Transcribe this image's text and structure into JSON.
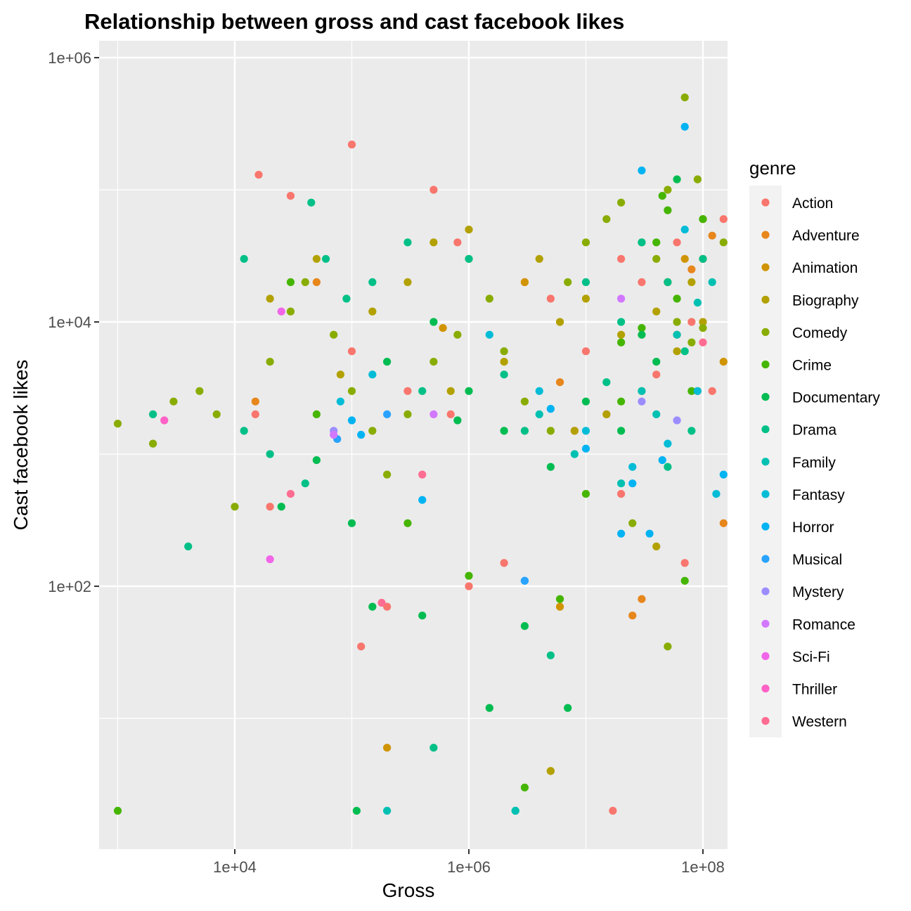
{
  "chart_data": {
    "type": "scatter",
    "title": "Relationship between gross and cast facebook likes",
    "xlabel": "Gross",
    "ylabel": "Cast facebook likes",
    "x_scale": "log10",
    "y_scale": "log10",
    "xlim": [
      500,
      1000000000
    ],
    "ylim": [
      1.5,
      1000000
    ],
    "x_ticks": [
      10000,
      1000000,
      100000000
    ],
    "x_tick_labels": [
      "1e+04",
      "1e+06",
      "1e+08"
    ],
    "y_ticks": [
      100,
      10000,
      1000000
    ],
    "y_tick_labels": [
      "1e+02",
      "1e+04",
      "1e+06"
    ],
    "grid": true,
    "legend": {
      "title": "genre",
      "placement": "right",
      "entries": [
        {
          "name": "Action",
          "color": "#F8766D"
        },
        {
          "name": "Adventure",
          "color": "#E58700"
        },
        {
          "name": "Animation",
          "color": "#C99800"
        },
        {
          "name": "Biography",
          "color": "#A3A500"
        },
        {
          "name": "Comedy",
          "color": "#6BB100"
        },
        {
          "name": "Crime",
          "color": "#00BA38"
        },
        {
          "name": "Documentary",
          "color": "#00BF7D"
        },
        {
          "name": "Drama",
          "color": "#00C0AF"
        },
        {
          "name": "Family",
          "color": "#00BCD8"
        },
        {
          "name": "Fantasy",
          "color": "#00B0F6"
        },
        {
          "name": "Horror",
          "color": "#619CFF"
        },
        {
          "name": "Musical",
          "color": "#B983FF"
        },
        {
          "name": "Mystery",
          "color": "#E76BF3"
        },
        {
          "name": "Romance",
          "color": "#FD61D1"
        },
        {
          "name": "Sci-Fi",
          "color": "#FF67A4"
        },
        {
          "name": "Thriller",
          "color": "#F8766D"
        },
        {
          "name": "Western",
          "color": "#F8766D"
        }
      ]
    },
    "legend_colors": {
      "Action": "#F8766D",
      "Adventure": "#E7861B",
      "Animation": "#D09400",
      "Biography": "#B2A100",
      "Comedy": "#89AC00",
      "Crime": "#45B500",
      "Documentary": "#00BC51",
      "Drama": "#00C087",
      "Family": "#00C0B2",
      "Fantasy": "#00BCD6",
      "Horror": "#00B3F2",
      "Musical": "#29A3FF",
      "Mystery": "#9C8DFF",
      "Romance": "#D277FF",
      "Sci-Fi": "#F166E8",
      "Thriller": "#FF61C7",
      "Western": "#FF6C91"
    },
    "series": [
      {
        "name": "Action",
        "points": [
          [
            100000,
            220000
          ],
          [
            16000,
            130000
          ],
          [
            30000,
            90000
          ],
          [
            500000,
            100000
          ],
          [
            800000,
            40000
          ],
          [
            700000,
            2000
          ],
          [
            300000,
            3000
          ],
          [
            100000,
            6000
          ],
          [
            3000000,
            20000
          ],
          [
            5000000,
            15000
          ],
          [
            10000000,
            6000
          ],
          [
            20000000,
            30000
          ],
          [
            50000000,
            20000
          ],
          [
            100000000,
            30000
          ],
          [
            200000000,
            25000
          ],
          [
            300000000,
            50000
          ],
          [
            400000000,
            20000
          ],
          [
            600000000,
            10000
          ],
          [
            700000000,
            8000
          ],
          [
            900000000,
            5000
          ],
          [
            30000000,
            20000
          ],
          [
            60000000,
            40000
          ],
          [
            80000000,
            10000
          ],
          [
            150000000,
            60000
          ],
          [
            250000000,
            80000
          ],
          [
            40000000,
            4000
          ],
          [
            15000000,
            2000
          ],
          [
            8000000,
            1500
          ],
          [
            20000000,
            500
          ],
          [
            70000000,
            150
          ],
          [
            120000000,
            3000
          ],
          [
            2000000,
            150
          ],
          [
            1000000,
            100
          ],
          [
            200000,
            70
          ],
          [
            120000,
            35
          ],
          [
            17000000,
            2
          ],
          [
            20000,
            400
          ],
          [
            15000,
            2000
          ],
          [
            400000000,
            15000
          ],
          [
            200000000,
            8000
          ]
        ]
      },
      {
        "name": "Adventure",
        "points": [
          [
            50000,
            20000
          ],
          [
            15000,
            2500
          ],
          [
            300000000,
            50000
          ],
          [
            200000000,
            40000
          ],
          [
            400000000,
            1200
          ],
          [
            150000000,
            300
          ],
          [
            25000000,
            60
          ],
          [
            30000000,
            80
          ],
          [
            6000000,
            3500
          ],
          [
            100000000,
            30000
          ],
          [
            250000000,
            70000
          ],
          [
            350000000,
            30000
          ],
          [
            180000000,
            15000
          ],
          [
            60000000,
            8000
          ],
          [
            80000000,
            25000
          ],
          [
            120000000,
            45000
          ],
          [
            90000000,
            3000
          ],
          [
            500000000,
            15000
          ],
          [
            450000000,
            8000
          ],
          [
            300000000,
            2500
          ]
        ]
      },
      {
        "name": "Animation",
        "points": [
          [
            200000,
            6
          ],
          [
            5000000,
            4
          ],
          [
            400000000,
            400
          ],
          [
            230000000,
            250
          ],
          [
            150000000,
            5000
          ],
          [
            100000000,
            60000
          ],
          [
            70000000,
            30000
          ],
          [
            50000000,
            20000
          ],
          [
            200000000,
            40000
          ],
          [
            300000000,
            70000
          ],
          [
            6000000,
            70
          ],
          [
            600000,
            9000
          ],
          [
            3000000,
            20000
          ]
        ]
      },
      {
        "name": "Biography",
        "points": [
          [
            1000000,
            50000
          ],
          [
            500000,
            40000
          ],
          [
            300000,
            20000
          ],
          [
            4000000,
            30000
          ],
          [
            6000000,
            10000
          ],
          [
            10000000,
            15000
          ],
          [
            20000000,
            8000
          ],
          [
            40000000,
            12000
          ],
          [
            60000000,
            6000
          ],
          [
            30000000,
            3000
          ],
          [
            15000000,
            2000
          ],
          [
            8000000,
            1500
          ],
          [
            80000000,
            20000
          ],
          [
            100000000,
            10000
          ],
          [
            2000000,
            5000
          ],
          [
            700000,
            3000
          ],
          [
            5000000,
            4
          ],
          [
            150000,
            12000
          ],
          [
            80000,
            4000
          ],
          [
            50000,
            30000
          ],
          [
            20000,
            15000
          ],
          [
            40000000,
            200
          ]
        ]
      },
      {
        "name": "Comedy",
        "points": [
          [
            600,
            800
          ],
          [
            1000,
            1700
          ],
          [
            2000,
            1200
          ],
          [
            3000,
            2500
          ],
          [
            5000,
            3000
          ],
          [
            7000,
            2000
          ],
          [
            10000,
            400
          ],
          [
            20000,
            5000
          ],
          [
            30000,
            12000
          ],
          [
            40000,
            20000
          ],
          [
            70000,
            8000
          ],
          [
            100000,
            3000
          ],
          [
            150000,
            1500
          ],
          [
            200000,
            700
          ],
          [
            300000,
            2000
          ],
          [
            500000,
            5000
          ],
          [
            800000,
            8000
          ],
          [
            1000000,
            30000
          ],
          [
            1500000,
            15000
          ],
          [
            2000000,
            6000
          ],
          [
            3000000,
            2500
          ],
          [
            5000000,
            1500
          ],
          [
            7000000,
            20000
          ],
          [
            10000000,
            40000
          ],
          [
            12000000,
            1
          ],
          [
            15000000,
            60000
          ],
          [
            20000000,
            80000
          ],
          [
            30000000,
            40000
          ],
          [
            40000000,
            30000
          ],
          [
            50000000,
            100000
          ],
          [
            70000000,
            500000
          ],
          [
            90000000,
            120000
          ],
          [
            100000000,
            60000
          ],
          [
            150000000,
            40000
          ],
          [
            200000000,
            20000
          ],
          [
            50000000,
            35
          ],
          [
            25000000,
            300
          ],
          [
            60000000,
            10000
          ],
          [
            80000000,
            7000
          ],
          [
            100000000,
            9000
          ]
        ]
      },
      {
        "name": "Crime",
        "points": [
          [
            1000,
            2
          ],
          [
            30000,
            20000
          ],
          [
            50000,
            2000
          ],
          [
            300000,
            300
          ],
          [
            1000000,
            120
          ],
          [
            3000000,
            3
          ],
          [
            6000000,
            80
          ],
          [
            10000000,
            500
          ],
          [
            20000000,
            2500
          ],
          [
            30000000,
            9000
          ],
          [
            40000000,
            40000
          ],
          [
            50000000,
            70000
          ],
          [
            70000000,
            110
          ],
          [
            100000000,
            60000
          ],
          [
            80000000,
            3000
          ],
          [
            60000000,
            15000
          ],
          [
            45000000,
            90000
          ],
          [
            20000000,
            7000
          ]
        ]
      },
      {
        "name": "Documentary",
        "points": [
          [
            110000,
            2
          ],
          [
            150000,
            70
          ],
          [
            400000,
            60
          ],
          [
            1500000,
            12
          ],
          [
            7000000,
            12
          ],
          [
            3000000,
            50
          ],
          [
            500000,
            10000
          ],
          [
            200000,
            5000
          ],
          [
            100000,
            300
          ],
          [
            50000,
            900
          ],
          [
            25000,
            400
          ],
          [
            1000000,
            3000
          ],
          [
            5000000,
            800
          ],
          [
            10000000,
            2500
          ],
          [
            20000000,
            1500
          ],
          [
            30000000,
            8000
          ],
          [
            40000000,
            5000
          ],
          [
            2000000,
            1500
          ],
          [
            800000,
            1800
          ],
          [
            60000000,
            120000
          ]
        ]
      },
      {
        "name": "Drama",
        "points": [
          [
            2000,
            2000
          ],
          [
            4000,
            200
          ],
          [
            12000,
            30000
          ],
          [
            20000,
            1000
          ],
          [
            45000,
            80000
          ],
          [
            60000,
            30000
          ],
          [
            90000,
            15000
          ],
          [
            150000,
            20000
          ],
          [
            300000,
            40000
          ],
          [
            500000,
            6
          ],
          [
            1000000,
            30000
          ],
          [
            2000000,
            4000
          ],
          [
            3000000,
            1500
          ],
          [
            5000000,
            30
          ],
          [
            10000000,
            20000
          ],
          [
            15000000,
            3500
          ],
          [
            20000000,
            10000
          ],
          [
            30000000,
            40000
          ],
          [
            50000000,
            20000
          ],
          [
            70000000,
            6000
          ],
          [
            100000000,
            30000
          ],
          [
            600000000,
            40000
          ],
          [
            2500000,
            2
          ],
          [
            400000,
            3000
          ],
          [
            40000,
            600
          ],
          [
            12000,
            1500
          ],
          [
            80000000,
            1500
          ],
          [
            50000000,
            800
          ]
        ]
      },
      {
        "name": "Family",
        "points": [
          [
            200000,
            2
          ],
          [
            2500000,
            2
          ],
          [
            4000000,
            2000
          ],
          [
            8000000,
            1000
          ],
          [
            30000000,
            3000
          ],
          [
            60000000,
            8000
          ],
          [
            90000000,
            14000
          ],
          [
            120000000,
            20000
          ],
          [
            40000000,
            2000
          ],
          [
            20000000,
            600
          ]
        ]
      },
      {
        "name": "Fantasy",
        "points": [
          [
            80000,
            2500
          ],
          [
            150000,
            4000
          ],
          [
            1500000,
            8000
          ],
          [
            4000000,
            3000
          ],
          [
            10000000,
            1500
          ],
          [
            25000000,
            800
          ],
          [
            50000000,
            1200
          ],
          [
            90000000,
            3000
          ],
          [
            130000000,
            500
          ],
          [
            200000000,
            12000
          ],
          [
            70000000,
            50000
          ]
        ]
      },
      {
        "name": "Horror",
        "points": [
          [
            70000000,
            300000
          ],
          [
            30000000,
            140000
          ],
          [
            120000,
            1400
          ],
          [
            100000,
            1800
          ],
          [
            400000,
            450
          ],
          [
            3000000,
            110
          ],
          [
            20000000,
            250
          ],
          [
            35000000,
            250
          ],
          [
            25000000,
            600
          ],
          [
            45000000,
            900
          ],
          [
            150000000,
            700
          ],
          [
            10000000,
            1100
          ],
          [
            5000000,
            2200
          ]
        ]
      },
      {
        "name": "Musical",
        "points": [
          [
            3000000,
            110
          ],
          [
            75000,
            1300
          ],
          [
            200000,
            2000
          ]
        ]
      },
      {
        "name": "Mystery",
        "points": [
          [
            70000,
            1500
          ],
          [
            30000000,
            2500
          ],
          [
            60000000,
            1800
          ]
        ]
      },
      {
        "name": "Romance",
        "points": [
          [
            70000,
            1400
          ],
          [
            500000,
            2000
          ],
          [
            20000000,
            15000
          ]
        ]
      },
      {
        "name": "Sci-Fi",
        "points": [
          [
            20000,
            160
          ],
          [
            25000,
            12000
          ]
        ]
      },
      {
        "name": "Thriller",
        "points": [
          [
            2500,
            1800
          ]
        ]
      },
      {
        "name": "Western",
        "points": [
          [
            180000,
            75
          ],
          [
            30000,
            500
          ],
          [
            400000,
            700
          ],
          [
            100000000,
            7000
          ]
        ]
      }
    ]
  }
}
